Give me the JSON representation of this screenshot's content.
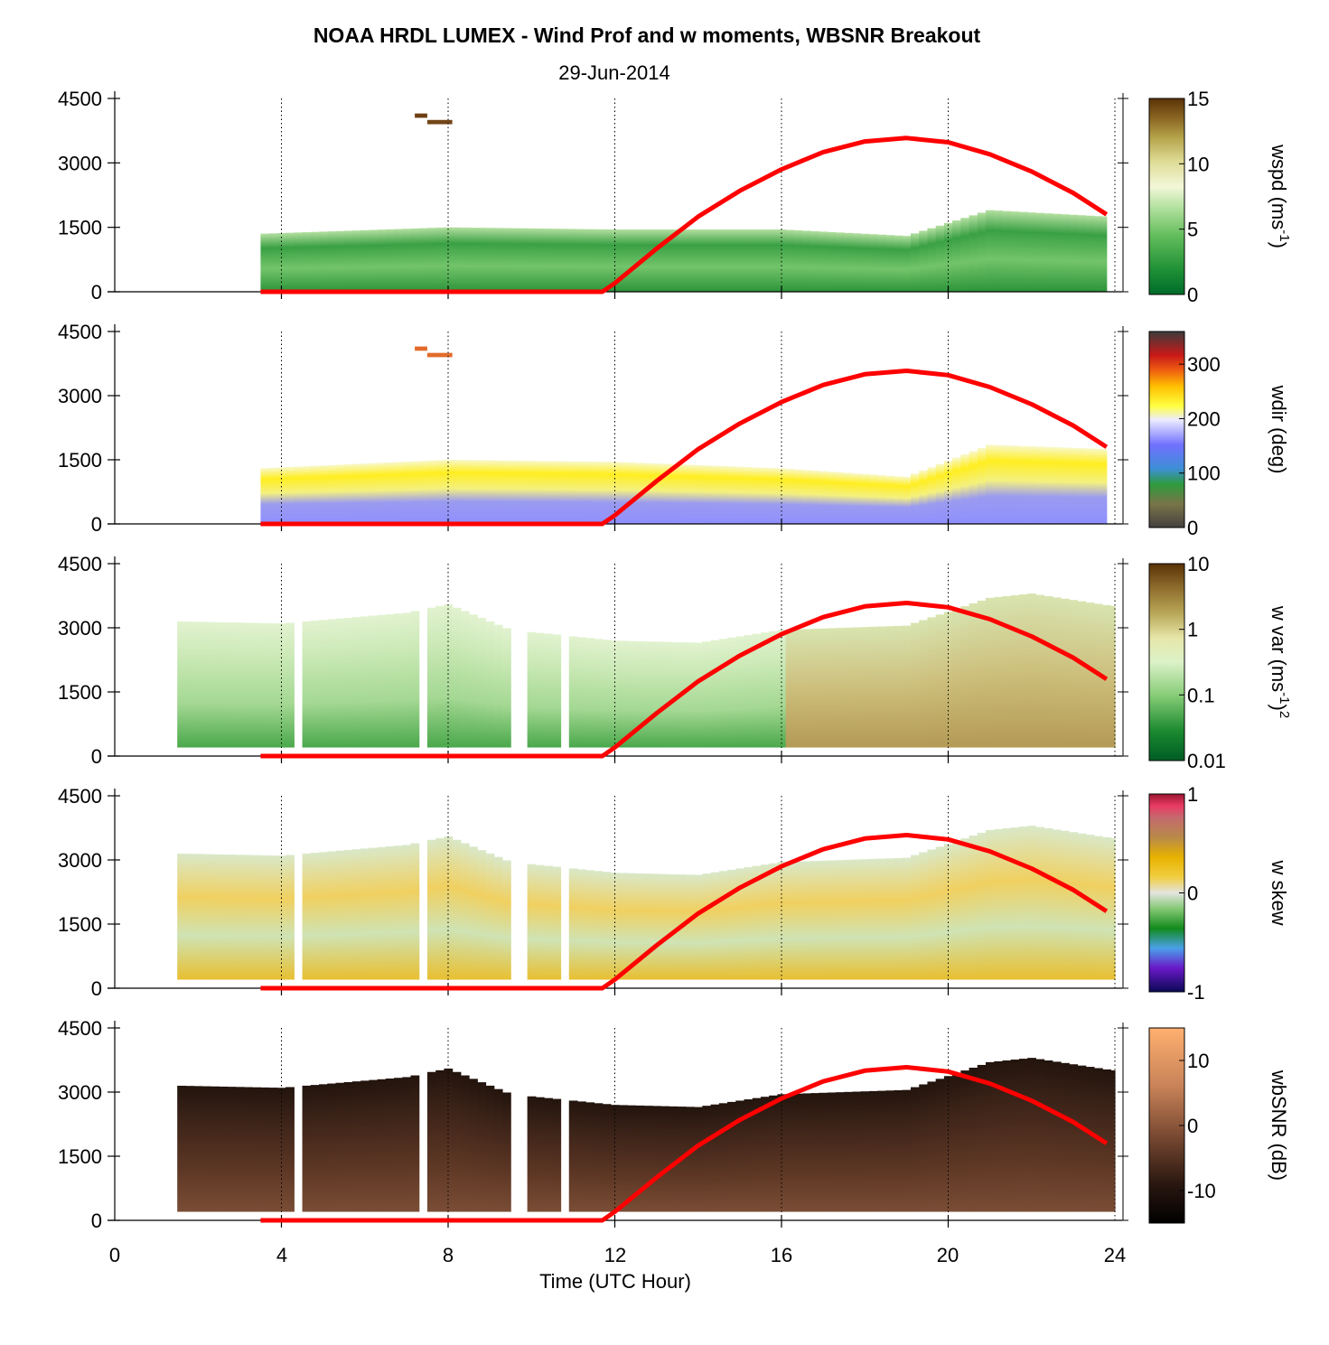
{
  "title": "NOAA HRDL LUMEX - Wind Prof and w moments, WBSNR Breakout",
  "subtitle": "29-Jun-2014",
  "xlabel": "Time (UTC Hour)",
  "x_ticks": [
    "0",
    "4",
    "8",
    "12",
    "16",
    "20",
    "24"
  ],
  "colors": {
    "sun_curve": "#ff0000",
    "gap": "#ffffff"
  },
  "chart_data": [
    {
      "type": "heatmap",
      "name": "wspd",
      "colorbar_label": "wspd (ms",
      "colorbar_label_sup": "-1",
      "colorbar_label_tail": ")",
      "colorbar_ticks": [
        "15",
        "10",
        "5",
        "0"
      ],
      "colorbar_range": [
        0,
        15
      ],
      "xlim": [
        0,
        24
      ],
      "ylim": [
        0,
        4500
      ],
      "y_ticks": [
        "4500",
        "3000",
        "1500",
        "0"
      ],
      "data_time_range": [
        3.5,
        23.8
      ],
      "top_height_profile": {
        "x": [
          3.5,
          8,
          12,
          16,
          19,
          21,
          23.8
        ],
        "y": [
          1350,
          1500,
          1450,
          1450,
          1300,
          1900,
          1750
        ]
      },
      "isolated_cells": [
        {
          "t": [
            7.2,
            7.5
          ],
          "z": [
            4050,
            4150
          ],
          "value": 14
        },
        {
          "t": [
            7.5,
            8.1
          ],
          "z": [
            3900,
            4000
          ],
          "value": 13
        }
      ]
    },
    {
      "type": "heatmap",
      "name": "wdir",
      "colorbar_label": "wdir (deg)",
      "colorbar_ticks": [
        "300",
        "200",
        "100",
        "0"
      ],
      "colorbar_range": [
        0,
        360
      ],
      "xlim": [
        0,
        24
      ],
      "ylim": [
        0,
        4500
      ],
      "y_ticks": [
        "4500",
        "3000",
        "1500",
        "0"
      ],
      "data_time_range": [
        3.5,
        23.8
      ],
      "top_height_profile": {
        "x": [
          3.5,
          8,
          12,
          16,
          19,
          21,
          23.8
        ],
        "y": [
          1300,
          1500,
          1450,
          1300,
          1100,
          1850,
          1750
        ]
      },
      "isolated_cells": [
        {
          "t": [
            7.2,
            7.5
          ],
          "z": [
            4050,
            4150
          ],
          "value": 300
        },
        {
          "t": [
            7.5,
            8.1
          ],
          "z": [
            3900,
            4000
          ],
          "value": 295
        }
      ]
    },
    {
      "type": "heatmap",
      "name": "w var",
      "colorbar_label": "w var (ms",
      "colorbar_label_sup": "-1",
      "colorbar_label_tail": ")",
      "colorbar_label_sup2": "2",
      "colorbar_ticks": [
        "10",
        "1",
        "0.1",
        "0.01"
      ],
      "colorbar_range": [
        0.01,
        10
      ],
      "colorbar_scale": "log",
      "xlim": [
        0,
        24
      ],
      "ylim": [
        0,
        4500
      ],
      "y_ticks": [
        "4500",
        "3000",
        "1500",
        "0"
      ],
      "data_time_range": [
        1.5,
        24
      ],
      "data_bottom_height": 200,
      "gaps": [
        [
          4.25,
          4.6
        ],
        [
          7.3,
          7.6
        ],
        [
          9.6,
          9.9
        ],
        [
          10.6,
          10.85
        ]
      ],
      "top_height_profile": {
        "x": [
          1.5,
          4,
          7,
          8,
          9.5,
          12,
          14,
          16,
          19,
          21,
          22,
          24
        ],
        "y": [
          3150,
          3100,
          3350,
          3550,
          2950,
          2700,
          2650,
          2950,
          3050,
          3700,
          3800,
          3500
        ]
      }
    },
    {
      "type": "heatmap",
      "name": "w skew",
      "colorbar_label": "w skew",
      "colorbar_ticks": [
        "1",
        "0",
        "-1"
      ],
      "colorbar_range": [
        -1,
        1
      ],
      "xlim": [
        0,
        24
      ],
      "ylim": [
        0,
        4500
      ],
      "y_ticks": [
        "4500",
        "3000",
        "1500",
        "0"
      ],
      "data_time_range": [
        1.5,
        24
      ],
      "data_bottom_height": 200,
      "gaps": [
        [
          4.25,
          4.6
        ],
        [
          7.3,
          7.6
        ],
        [
          9.6,
          9.9
        ],
        [
          10.6,
          10.85
        ]
      ],
      "top_height_profile": {
        "x": [
          1.5,
          4,
          7,
          8,
          9.5,
          12,
          14,
          16,
          19,
          21,
          22,
          24
        ],
        "y": [
          3150,
          3100,
          3350,
          3550,
          2950,
          2700,
          2650,
          2950,
          3050,
          3700,
          3800,
          3500
        ]
      }
    },
    {
      "type": "heatmap",
      "name": "wbSNR",
      "colorbar_label": "wbSNR (dB)",
      "colorbar_ticks": [
        "10",
        "0",
        "-10"
      ],
      "colorbar_range": [
        -15,
        15
      ],
      "xlim": [
        0,
        24
      ],
      "ylim": [
        0,
        4500
      ],
      "y_ticks": [
        "4500",
        "3000",
        "1500",
        "0"
      ],
      "data_time_range": [
        1.5,
        24
      ],
      "data_bottom_height": 200,
      "gaps": [
        [
          4.25,
          4.6
        ],
        [
          7.3,
          7.6
        ],
        [
          9.6,
          9.9
        ],
        [
          10.6,
          10.85
        ]
      ],
      "top_height_profile": {
        "x": [
          1.5,
          4,
          7,
          8,
          9.5,
          12,
          14,
          16,
          19,
          21,
          22,
          24
        ],
        "y": [
          3150,
          3100,
          3350,
          3550,
          2950,
          2700,
          2650,
          2950,
          3050,
          3700,
          3800,
          3500
        ]
      }
    }
  ],
  "overlay_curve": {
    "x": [
      3.5,
      11.7,
      12,
      13,
      14,
      15,
      16,
      17,
      18,
      19,
      20,
      21,
      22,
      23,
      23.8
    ],
    "y": [
      0,
      0,
      200,
      1000,
      1750,
      2350,
      2850,
      3250,
      3500,
      3580,
      3480,
      3200,
      2800,
      2300,
      1800
    ]
  }
}
